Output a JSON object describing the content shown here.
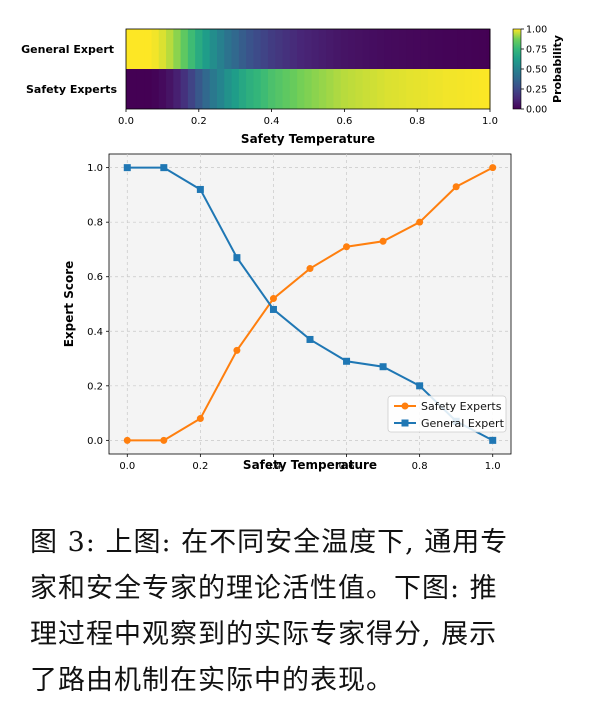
{
  "chart_data": [
    {
      "type": "heatmap",
      "rows": [
        "General Expert",
        "Safety Experts"
      ],
      "x": [
        0.0,
        0.02,
        0.04,
        0.06,
        0.08,
        0.1,
        0.12,
        0.14,
        0.16,
        0.18,
        0.2,
        0.22,
        0.24,
        0.26,
        0.28,
        0.3,
        0.32,
        0.34,
        0.36,
        0.38,
        0.4,
        0.42,
        0.44,
        0.46,
        0.48,
        0.5,
        0.52,
        0.54,
        0.56,
        0.58,
        0.6,
        0.62,
        0.64,
        0.66,
        0.68,
        0.7,
        0.72,
        0.74,
        0.76,
        0.78,
        0.8,
        0.82,
        0.84,
        0.86,
        0.88,
        0.9,
        0.92,
        0.94,
        0.96,
        0.98,
        1.0
      ],
      "values": [
        [
          1.0,
          1.0,
          1.0,
          1.0,
          0.99,
          0.97,
          0.94,
          0.9,
          0.84,
          0.77,
          0.69,
          0.62,
          0.55,
          0.49,
          0.43,
          0.38,
          0.33,
          0.29,
          0.26,
          0.23,
          0.2,
          0.18,
          0.16,
          0.14,
          0.12,
          0.11,
          0.1,
          0.09,
          0.08,
          0.07,
          0.06,
          0.055,
          0.05,
          0.045,
          0.04,
          0.035,
          0.03,
          0.028,
          0.025,
          0.022,
          0.02,
          0.018,
          0.015,
          0.013,
          0.01,
          0.01,
          0.008,
          0.006,
          0.004,
          0.002,
          0.0
        ],
        [
          0.0,
          0.0,
          0.0,
          0.0,
          0.01,
          0.03,
          0.06,
          0.1,
          0.16,
          0.23,
          0.31,
          0.38,
          0.45,
          0.51,
          0.57,
          0.62,
          0.67,
          0.71,
          0.74,
          0.77,
          0.8,
          0.82,
          0.84,
          0.86,
          0.88,
          0.89,
          0.9,
          0.91,
          0.92,
          0.93,
          0.94,
          0.945,
          0.95,
          0.955,
          0.96,
          0.965,
          0.97,
          0.972,
          0.975,
          0.978,
          0.98,
          0.982,
          0.985,
          0.987,
          0.99,
          0.99,
          0.992,
          0.994,
          0.996,
          0.998,
          1.0
        ]
      ],
      "xlabel": "Safety Temperature",
      "xlim": [
        0.0,
        1.0
      ],
      "xticks": [
        "0.0",
        "0.2",
        "0.4",
        "0.6",
        "0.8",
        "1.0"
      ],
      "colorbar": {
        "label": "Probability",
        "range": [
          0.0,
          1.0
        ],
        "ticks": [
          "0.00",
          "0.25",
          "0.50",
          "0.75",
          "1.00"
        ],
        "colormap": "viridis"
      }
    },
    {
      "type": "line",
      "x": [
        0.0,
        0.1,
        0.2,
        0.3,
        0.4,
        0.5,
        0.6,
        0.7,
        0.8,
        0.9,
        1.0
      ],
      "series": [
        {
          "name": "Safety Experts",
          "color": "#ff7f0e",
          "marker": "circle",
          "values": [
            0.0,
            0.0,
            0.08,
            0.33,
            0.52,
            0.63,
            0.71,
            0.73,
            0.8,
            0.93,
            1.0
          ]
        },
        {
          "name": "General Expert",
          "color": "#1f77b4",
          "marker": "square",
          "values": [
            1.0,
            1.0,
            0.92,
            0.67,
            0.48,
            0.37,
            0.29,
            0.27,
            0.2,
            0.07,
            0.0
          ]
        }
      ],
      "xlabel": "Safety Temperature",
      "ylabel": "Expert Score",
      "xlim": [
        -0.05,
        1.05
      ],
      "ylim": [
        -0.05,
        1.05
      ],
      "xticks": [
        "0.0",
        "0.2",
        "0.4",
        "0.6",
        "0.8",
        "1.0"
      ],
      "yticks": [
        "0.0",
        "0.2",
        "0.4",
        "0.6",
        "0.8",
        "1.0"
      ],
      "grid": true,
      "legend_position": "bottom-right",
      "background": "#f5f5f5"
    }
  ],
  "caption": {
    "lines": [
      "图 3: 上图: 在不同安全温度下, 通用专",
      "家和安全专家的理论活性值。下图: 推",
      "理过程中观察到的实际专家得分, 展示",
      "了路由机制在实际中的表现。"
    ]
  }
}
